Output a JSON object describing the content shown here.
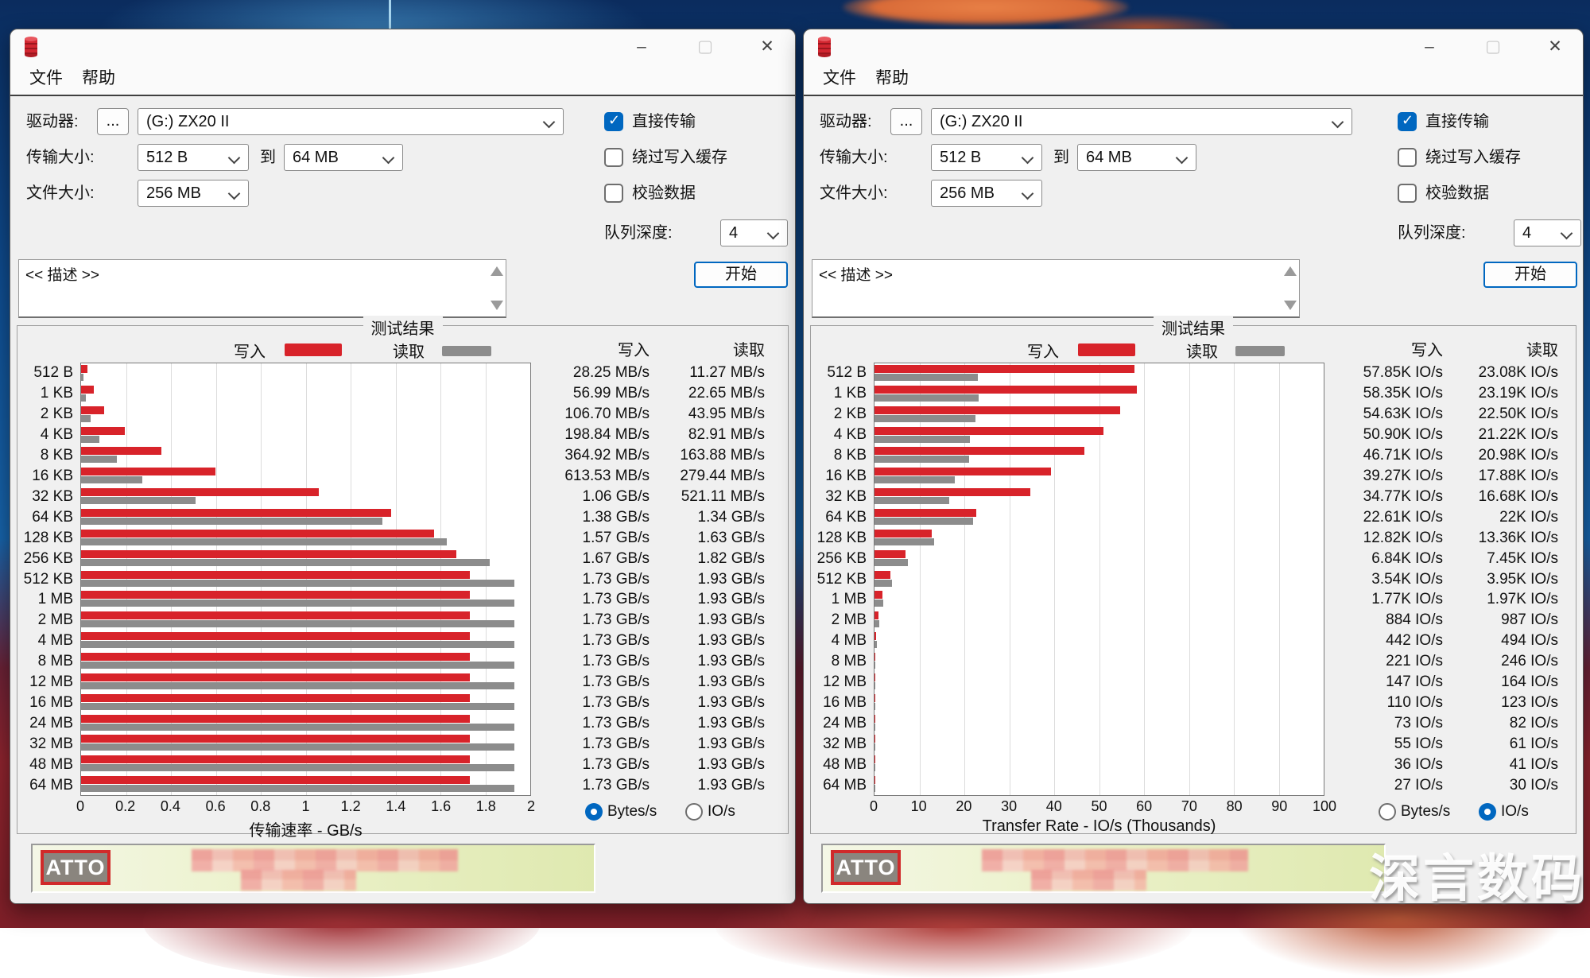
{
  "watermark": "深言数码",
  "chart_data": [
    {
      "type": "bar",
      "orientation": "horizontal",
      "title": "测试结果",
      "xlabel": "传输速率 - GB/s",
      "xlim": [
        0,
        2
      ],
      "xticks": [
        "0",
        "0.2",
        "0.4",
        "0.6",
        "0.8",
        "1",
        "1.2",
        "1.4",
        "1.6",
        "1.8",
        "2"
      ],
      "categories": [
        "512 B",
        "1 KB",
        "2 KB",
        "4 KB",
        "8 KB",
        "16 KB",
        "32 KB",
        "64 KB",
        "128 KB",
        "256 KB",
        "512 KB",
        "1 MB",
        "2 MB",
        "4 MB",
        "8 MB",
        "12 MB",
        "16 MB",
        "24 MB",
        "32 MB",
        "48 MB",
        "64 MB"
      ],
      "series": [
        {
          "name": "写入",
          "color": "#d8232a",
          "values": [
            0.028,
            0.056,
            0.104,
            0.194,
            0.356,
            0.599,
            1.06,
            1.38,
            1.57,
            1.67,
            1.73,
            1.73,
            1.73,
            1.73,
            1.73,
            1.73,
            1.73,
            1.73,
            1.73,
            1.73,
            1.73
          ],
          "labels": [
            "28.25 MB/s",
            "56.99 MB/s",
            "106.70 MB/s",
            "198.84 MB/s",
            "364.92 MB/s",
            "613.53 MB/s",
            "1.06 GB/s",
            "1.38 GB/s",
            "1.57 GB/s",
            "1.67 GB/s",
            "1.73 GB/s",
            "1.73 GB/s",
            "1.73 GB/s",
            "1.73 GB/s",
            "1.73 GB/s",
            "1.73 GB/s",
            "1.73 GB/s",
            "1.73 GB/s",
            "1.73 GB/s",
            "1.73 GB/s",
            "1.73 GB/s"
          ]
        },
        {
          "name": "读取",
          "color": "#8c8c8c",
          "values": [
            0.011,
            0.022,
            0.043,
            0.081,
            0.16,
            0.273,
            0.509,
            1.34,
            1.63,
            1.82,
            1.93,
            1.93,
            1.93,
            1.93,
            1.93,
            1.93,
            1.93,
            1.93,
            1.93,
            1.93,
            1.93
          ],
          "labels": [
            "11.27 MB/s",
            "22.65 MB/s",
            "43.95 MB/s",
            "82.91 MB/s",
            "163.88 MB/s",
            "279.44 MB/s",
            "521.11 MB/s",
            "1.34 GB/s",
            "1.63 GB/s",
            "1.82 GB/s",
            "1.93 GB/s",
            "1.93 GB/s",
            "1.93 GB/s",
            "1.93 GB/s",
            "1.93 GB/s",
            "1.93 GB/s",
            "1.93 GB/s",
            "1.93 GB/s",
            "1.93 GB/s",
            "1.93 GB/s",
            "1.93 GB/s"
          ]
        }
      ]
    },
    {
      "type": "bar",
      "orientation": "horizontal",
      "title": "测试结果",
      "xlabel": "Transfer Rate - IO/s (Thousands)",
      "xlim": [
        0,
        100
      ],
      "xticks": [
        "0",
        "10",
        "20",
        "30",
        "40",
        "50",
        "60",
        "70",
        "80",
        "90",
        "100"
      ],
      "categories": [
        "512 B",
        "1 KB",
        "2 KB",
        "4 KB",
        "8 KB",
        "16 KB",
        "32 KB",
        "64 KB",
        "128 KB",
        "256 KB",
        "512 KB",
        "1 MB",
        "2 MB",
        "4 MB",
        "8 MB",
        "12 MB",
        "16 MB",
        "24 MB",
        "32 MB",
        "48 MB",
        "64 MB"
      ],
      "series": [
        {
          "name": "写入",
          "color": "#d8232a",
          "values": [
            57.85,
            58.35,
            54.63,
            50.9,
            46.71,
            39.27,
            34.77,
            22.61,
            12.82,
            6.84,
            3.54,
            1.77,
            0.884,
            0.442,
            0.221,
            0.147,
            0.11,
            0.073,
            0.055,
            0.036,
            0.027
          ],
          "labels": [
            "57.85K IO/s",
            "58.35K IO/s",
            "54.63K IO/s",
            "50.90K IO/s",
            "46.71K IO/s",
            "39.27K IO/s",
            "34.77K IO/s",
            "22.61K IO/s",
            "12.82K IO/s",
            "6.84K IO/s",
            "3.54K IO/s",
            "1.77K IO/s",
            "884 IO/s",
            "442 IO/s",
            "221 IO/s",
            "147 IO/s",
            "110 IO/s",
            "73 IO/s",
            "55 IO/s",
            "36 IO/s",
            "27 IO/s"
          ]
        },
        {
          "name": "读取",
          "color": "#8c8c8c",
          "values": [
            23.08,
            23.19,
            22.5,
            21.22,
            20.98,
            17.88,
            16.68,
            22,
            13.36,
            7.45,
            3.95,
            1.97,
            0.987,
            0.494,
            0.246,
            0.164,
            0.123,
            0.082,
            0.061,
            0.041,
            0.03
          ],
          "labels": [
            "23.08K IO/s",
            "23.19K IO/s",
            "22.50K IO/s",
            "21.22K IO/s",
            "20.98K IO/s",
            "17.88K IO/s",
            "16.68K IO/s",
            "22K IO/s",
            "13.36K IO/s",
            "7.45K IO/s",
            "3.95K IO/s",
            "1.97K IO/s",
            "987 IO/s",
            "494 IO/s",
            "246 IO/s",
            "164 IO/s",
            "123 IO/s",
            "82 IO/s",
            "61 IO/s",
            "41 IO/s",
            "30 IO/s"
          ]
        }
      ]
    }
  ],
  "win_left": {
    "titlebar": {
      "minimize": "–",
      "maximize": "▢",
      "close": "✕"
    },
    "menu": {
      "file": "文件",
      "help": "帮助"
    },
    "form": {
      "drive_label": "驱动器:",
      "browse": "...",
      "drive_value": "(G:) ZX20 II",
      "transfer_label": "传输大小:",
      "transfer_from": "512 B",
      "to_label": "到",
      "transfer_to": "64 MB",
      "file_label": "文件大小:",
      "file_value": "256 MB",
      "cb_direct": "直接传输",
      "cb_direct_checked": true,
      "cb_bypass": "绕过写入缓存",
      "cb_bypass_checked": false,
      "cb_verify": "校验数据",
      "cb_verify_checked": false,
      "queue_label": "队列深度:",
      "queue_value": "4",
      "start": "开始",
      "description": "<< 描述 >>"
    },
    "results": {
      "radio_bytes": "Bytes/s",
      "radio_ios": "IO/s",
      "bytes_selected": true,
      "ios_selected": false
    },
    "logo": "ATTO"
  },
  "win_right": {
    "titlebar": {
      "minimize": "–",
      "maximize": "▢",
      "close": "✕"
    },
    "menu": {
      "file": "文件",
      "help": "帮助"
    },
    "form": {
      "drive_label": "驱动器:",
      "browse": "...",
      "drive_value": "(G:) ZX20 II",
      "transfer_label": "传输大小:",
      "transfer_from": "512 B",
      "to_label": "到",
      "transfer_to": "64 MB",
      "file_label": "文件大小:",
      "file_value": "256 MB",
      "cb_direct": "直接传输",
      "cb_direct_checked": true,
      "cb_bypass": "绕过写入缓存",
      "cb_bypass_checked": false,
      "cb_verify": "校验数据",
      "cb_verify_checked": false,
      "queue_label": "队列深度:",
      "queue_value": "4",
      "start": "开始",
      "description": "<< 描述 >>"
    },
    "results": {
      "radio_bytes": "Bytes/s",
      "radio_ios": "IO/s",
      "bytes_selected": false,
      "ios_selected": true
    },
    "logo": "ATTO"
  }
}
